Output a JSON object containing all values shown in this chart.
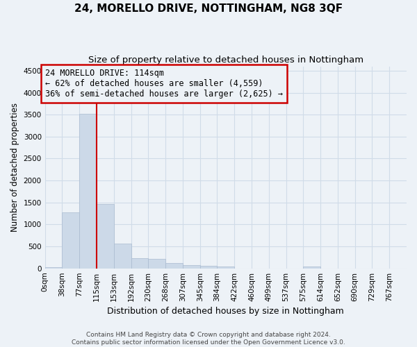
{
  "title": "24, MORELLO DRIVE, NOTTINGHAM, NG8 3QF",
  "subtitle": "Size of property relative to detached houses in Nottingham",
  "xlabel": "Distribution of detached houses by size in Nottingham",
  "ylabel": "Number of detached properties",
  "bar_color": "#ccd9e8",
  "bar_edge_color": "#aabbd0",
  "bins": [
    "0sqm",
    "38sqm",
    "77sqm",
    "115sqm",
    "153sqm",
    "192sqm",
    "230sqm",
    "268sqm",
    "307sqm",
    "345sqm",
    "384sqm",
    "422sqm",
    "460sqm",
    "499sqm",
    "537sqm",
    "575sqm",
    "614sqm",
    "652sqm",
    "690sqm",
    "729sqm",
    "767sqm"
  ],
  "values": [
    30,
    1270,
    3520,
    1460,
    570,
    230,
    210,
    115,
    80,
    55,
    40,
    0,
    0,
    0,
    0,
    40,
    0,
    0,
    0,
    0,
    0
  ],
  "ylim": [
    0,
    4600
  ],
  "yticks": [
    0,
    500,
    1000,
    1500,
    2000,
    2500,
    3000,
    3500,
    4000,
    4500
  ],
  "annotation_text_line1": "24 MORELLO DRIVE: 114sqm",
  "annotation_text_line2": "← 62% of detached houses are smaller (4,559)",
  "annotation_text_line3": "36% of semi-detached houses are larger (2,625) →",
  "annotation_box_color": "#cc0000",
  "footer_line1": "Contains HM Land Registry data © Crown copyright and database right 2024.",
  "footer_line2": "Contains public sector information licensed under the Open Government Licence v3.0.",
  "bg_color": "#edf2f7",
  "grid_color": "#d0dce8",
  "title_fontsize": 11,
  "subtitle_fontsize": 9.5,
  "xlabel_fontsize": 9,
  "ylabel_fontsize": 8.5,
  "tick_label_fontsize": 7.5,
  "annotation_fontsize": 8.5,
  "footer_fontsize": 6.5
}
